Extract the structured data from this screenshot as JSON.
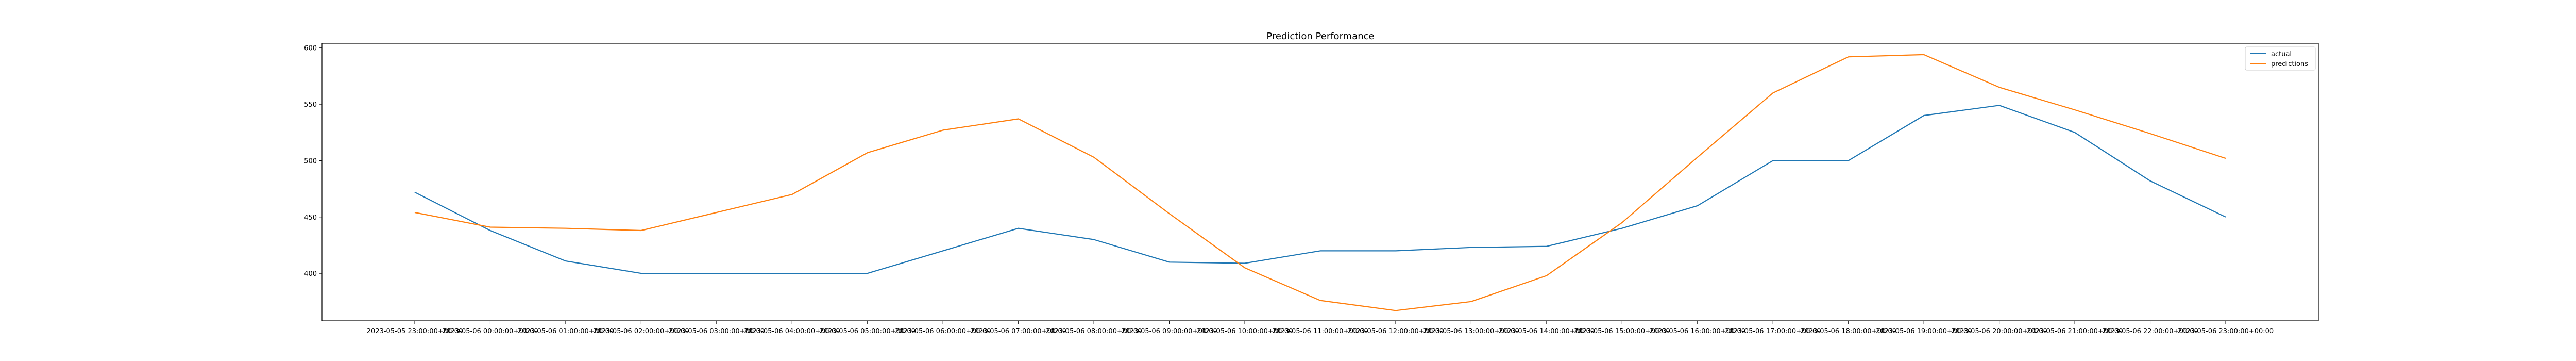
{
  "chart_data": {
    "type": "line",
    "title": "Prediction Performance",
    "xlabel": "",
    "ylabel": "",
    "x": [
      "2023-05-05 23:00:00+00:00",
      "2023-05-06 00:00:00+00:00",
      "2023-05-06 01:00:00+00:00",
      "2023-05-06 02:00:00+00:00",
      "2023-05-06 03:00:00+00:00",
      "2023-05-06 04:00:00+00:00",
      "2023-05-06 05:00:00+00:00",
      "2023-05-06 06:00:00+00:00",
      "2023-05-06 07:00:00+00:00",
      "2023-05-06 08:00:00+00:00",
      "2023-05-06 09:00:00+00:00",
      "2023-05-06 10:00:00+00:00",
      "2023-05-06 11:00:00+00:00",
      "2023-05-06 12:00:00+00:00",
      "2023-05-06 13:00:00+00:00",
      "2023-05-06 14:00:00+00:00",
      "2023-05-06 15:00:00+00:00",
      "2023-05-06 16:00:00+00:00",
      "2023-05-06 17:00:00+00:00",
      "2023-05-06 18:00:00+00:00",
      "2023-05-06 19:00:00+00:00",
      "2023-05-06 20:00:00+00:00",
      "2023-05-06 21:00:00+00:00",
      "2023-05-06 22:00:00+00:00",
      "2023-05-06 23:00:00+00:00"
    ],
    "series": [
      {
        "name": "actual",
        "color": "#1f77b4",
        "values": [
          472,
          438,
          411,
          400,
          400,
          400,
          400,
          420,
          440,
          430,
          410,
          409,
          420,
          420,
          423,
          424,
          440,
          460,
          500,
          500,
          540,
          549,
          525,
          482,
          450
        ]
      },
      {
        "name": "predictions",
        "color": "#ff7f0e",
        "values": [
          454,
          441,
          440,
          438,
          454,
          470,
          507,
          527,
          537,
          503,
          453,
          405,
          376,
          367,
          375,
          398,
          445,
          503,
          560,
          592,
          594,
          565,
          545,
          524,
          502
        ]
      }
    ],
    "yticks": [
      400,
      450,
      500,
      550,
      600
    ],
    "ylim": [
      358,
      604
    ],
    "grid": false,
    "legend_position": "top-right"
  }
}
